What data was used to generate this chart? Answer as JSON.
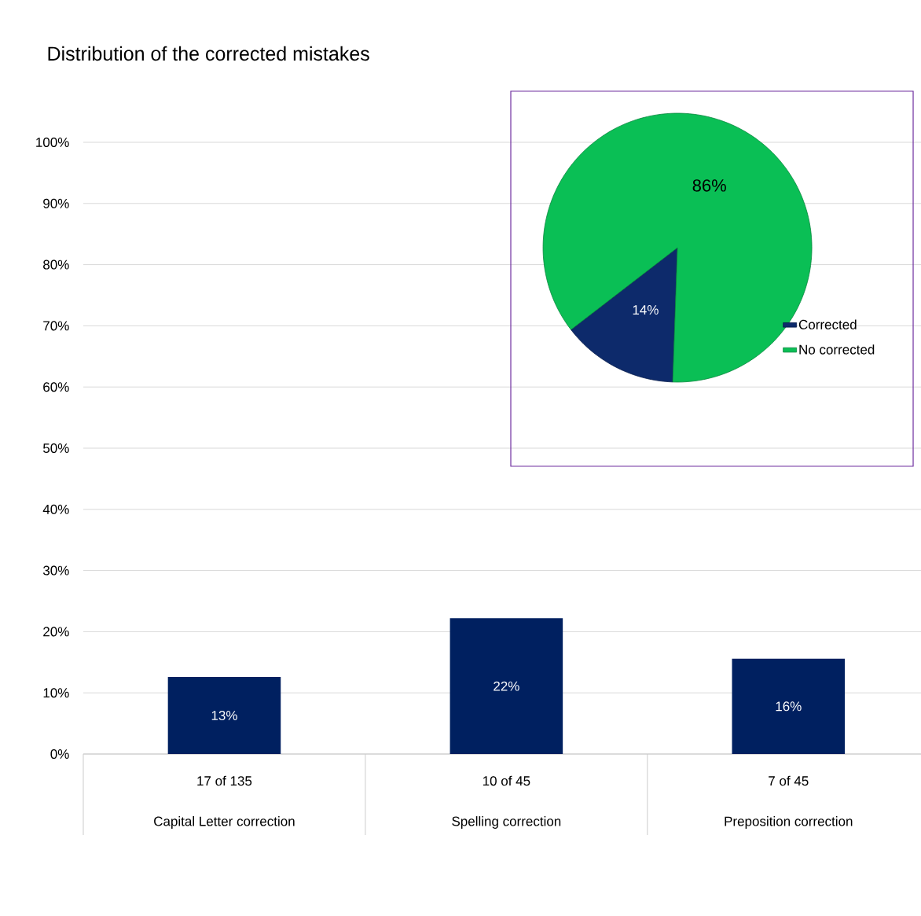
{
  "chart_data": [
    {
      "type": "bar",
      "title": "Distribution of the corrected mistakes",
      "categories": [
        "Capital Letter correction",
        "Spelling correction",
        "Preposition correction"
      ],
      "values": [
        12.6,
        22.2,
        15.6
      ],
      "value_labels": [
        "13%",
        "22%",
        "16%"
      ],
      "color": "#002060",
      "ylim": [
        0,
        100
      ],
      "yticks": [
        {
          "value": 0,
          "label": "0%"
        },
        {
          "value": 10,
          "label": "10%"
        },
        {
          "value": 20,
          "label": "20%"
        },
        {
          "value": 30,
          "label": "30%"
        },
        {
          "value": 40,
          "label": "40%"
        },
        {
          "value": 50,
          "label": "50%"
        },
        {
          "value": 60,
          "label": "60%"
        },
        {
          "value": 70,
          "label": "70%"
        },
        {
          "value": 80,
          "label": "80%"
        },
        {
          "value": 90,
          "label": "90%"
        },
        {
          "value": 100,
          "label": "100%"
        }
      ],
      "grid": "y",
      "annotations": [
        "17 of 135",
        "10 of 45",
        "7 of 45"
      ]
    },
    {
      "type": "pie",
      "categories": [
        "Corrected",
        "No corrected"
      ],
      "values": [
        14,
        86
      ],
      "value_labels": [
        "14%",
        "86%"
      ],
      "colors": [
        "#0d2a6b",
        "#0abf55"
      ],
      "legend": "right"
    }
  ]
}
